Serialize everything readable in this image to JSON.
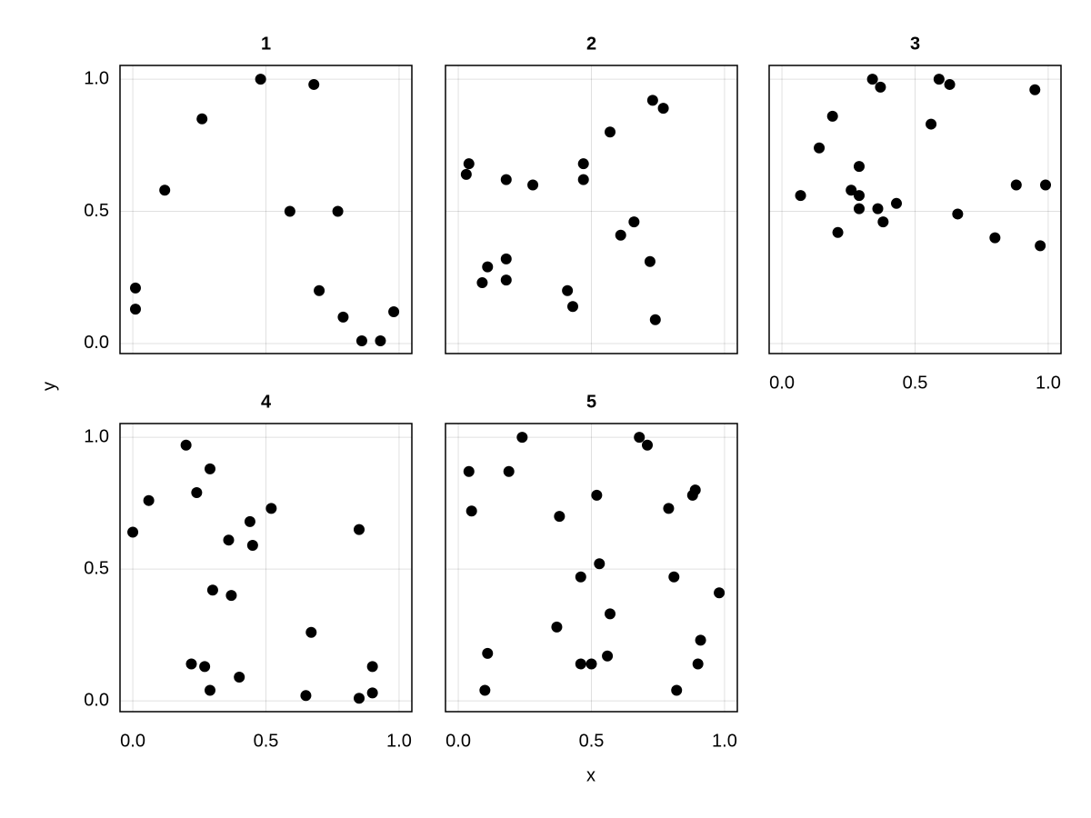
{
  "xlabel": "x",
  "ylabel": "y",
  "chart_data": [
    {
      "type": "scatter",
      "title": "1",
      "color": "#000000",
      "grid": true,
      "xticklabels": false,
      "yticklabels": true,
      "xlim": [
        -0.048,
        1.048
      ],
      "ylim": [
        -0.038,
        1.052
      ],
      "xticks": [
        {
          "value": 0,
          "label": "0.0"
        },
        {
          "value": 0.5,
          "label": "0.5"
        },
        {
          "value": 1,
          "label": "1.0"
        }
      ],
      "yticks": [
        {
          "value": 0,
          "label": "0.0"
        },
        {
          "value": 0.5,
          "label": "0.5"
        },
        {
          "value": 1,
          "label": "1.0"
        }
      ],
      "x": [
        0.01,
        0.01,
        0.12,
        0.26,
        0.48,
        0.68,
        0.59,
        0.77,
        0.7,
        0.79,
        0.86,
        0.93,
        0.98
      ],
      "values": [
        0.21,
        0.13,
        0.58,
        0.85,
        1.0,
        0.98,
        0.5,
        0.5,
        0.2,
        0.1,
        0.01,
        0.01,
        0.12
      ]
    },
    {
      "type": "scatter",
      "title": "2",
      "color": "#000000",
      "grid": true,
      "xticklabels": false,
      "yticklabels": false,
      "xlim": [
        -0.048,
        1.048
      ],
      "ylim": [
        -0.038,
        1.052
      ],
      "xticks": [
        {
          "value": 0,
          "label": "0.0"
        },
        {
          "value": 0.5,
          "label": "0.5"
        },
        {
          "value": 1,
          "label": "1.0"
        }
      ],
      "yticks": [
        {
          "value": 0,
          "label": "0.0"
        },
        {
          "value": 0.5,
          "label": "0.5"
        },
        {
          "value": 1,
          "label": "1.0"
        }
      ],
      "x": [
        0.04,
        0.03,
        0.09,
        0.11,
        0.18,
        0.18,
        0.18,
        0.28,
        0.41,
        0.43,
        0.47,
        0.47,
        0.57,
        0.61,
        0.66,
        0.72,
        0.73,
        0.77,
        0.74
      ],
      "values": [
        0.68,
        0.64,
        0.23,
        0.29,
        0.62,
        0.32,
        0.24,
        0.6,
        0.2,
        0.14,
        0.68,
        0.62,
        0.8,
        0.41,
        0.46,
        0.31,
        0.92,
        0.89,
        0.09
      ]
    },
    {
      "type": "scatter",
      "title": "3",
      "color": "#000000",
      "grid": true,
      "xticklabels": true,
      "yticklabels": false,
      "xlim": [
        -0.048,
        1.048
      ],
      "ylim": [
        -0.038,
        1.052
      ],
      "xticks": [
        {
          "value": 0,
          "label": "0.0"
        },
        {
          "value": 0.5,
          "label": "0.5"
        },
        {
          "value": 1,
          "label": "1.0"
        }
      ],
      "yticks": [
        {
          "value": 0,
          "label": "0.0"
        },
        {
          "value": 0.5,
          "label": "0.5"
        },
        {
          "value": 1,
          "label": "1.0"
        }
      ],
      "x": [
        0.07,
        0.14,
        0.19,
        0.21,
        0.26,
        0.29,
        0.29,
        0.29,
        0.34,
        0.37,
        0.36,
        0.38,
        0.43,
        0.56,
        0.59,
        0.63,
        0.66,
        0.8,
        0.88,
        0.95,
        0.97,
        0.99
      ],
      "values": [
        0.56,
        0.74,
        0.86,
        0.42,
        0.58,
        0.67,
        0.56,
        0.51,
        1.0,
        0.97,
        0.51,
        0.46,
        0.53,
        0.83,
        1.0,
        0.98,
        0.49,
        0.4,
        0.6,
        0.96,
        0.37,
        0.6
      ]
    },
    {
      "type": "scatter",
      "title": "4",
      "color": "#000000",
      "grid": true,
      "xticklabels": true,
      "yticklabels": true,
      "xlim": [
        -0.048,
        1.048
      ],
      "ylim": [
        -0.041,
        1.052
      ],
      "xticks": [
        {
          "value": 0,
          "label": "0.0"
        },
        {
          "value": 0.5,
          "label": "0.5"
        },
        {
          "value": 1,
          "label": "1.0"
        }
      ],
      "yticks": [
        {
          "value": 0,
          "label": "0.0"
        },
        {
          "value": 0.5,
          "label": "0.5"
        },
        {
          "value": 1,
          "label": "1.0"
        }
      ],
      "x": [
        0.0,
        0.06,
        0.2,
        0.22,
        0.24,
        0.27,
        0.29,
        0.3,
        0.29,
        0.36,
        0.37,
        0.4,
        0.44,
        0.45,
        0.52,
        0.65,
        0.67,
        0.85,
        0.85,
        0.9,
        0.9
      ],
      "values": [
        0.64,
        0.76,
        0.97,
        0.14,
        0.79,
        0.13,
        0.88,
        0.42,
        0.04,
        0.61,
        0.4,
        0.09,
        0.68,
        0.59,
        0.73,
        0.02,
        0.26,
        0.65,
        0.01,
        0.13,
        0.03
      ]
    },
    {
      "type": "scatter",
      "title": "5",
      "color": "#000000",
      "grid": true,
      "xticklabels": true,
      "yticklabels": false,
      "xlim": [
        -0.048,
        1.048
      ],
      "ylim": [
        -0.041,
        1.052
      ],
      "xticks": [
        {
          "value": 0,
          "label": "0.0"
        },
        {
          "value": 0.5,
          "label": "0.5"
        },
        {
          "value": 1,
          "label": "1.0"
        }
      ],
      "yticks": [
        {
          "value": 0,
          "label": "0.0"
        },
        {
          "value": 0.5,
          "label": "0.5"
        },
        {
          "value": 1,
          "label": "1.0"
        }
      ],
      "x": [
        0.04,
        0.05,
        0.11,
        0.1,
        0.19,
        0.24,
        0.37,
        0.38,
        0.46,
        0.46,
        0.5,
        0.52,
        0.53,
        0.56,
        0.57,
        0.68,
        0.71,
        0.79,
        0.81,
        0.82,
        0.88,
        0.89,
        0.9,
        0.91,
        0.98
      ],
      "values": [
        0.87,
        0.72,
        0.18,
        0.04,
        0.87,
        1.0,
        0.28,
        0.7,
        0.47,
        0.14,
        0.14,
        0.78,
        0.52,
        0.17,
        0.33,
        1.0,
        0.97,
        0.73,
        0.47,
        0.04,
        0.78,
        0.8,
        0.14,
        0.23,
        0.41
      ]
    }
  ]
}
